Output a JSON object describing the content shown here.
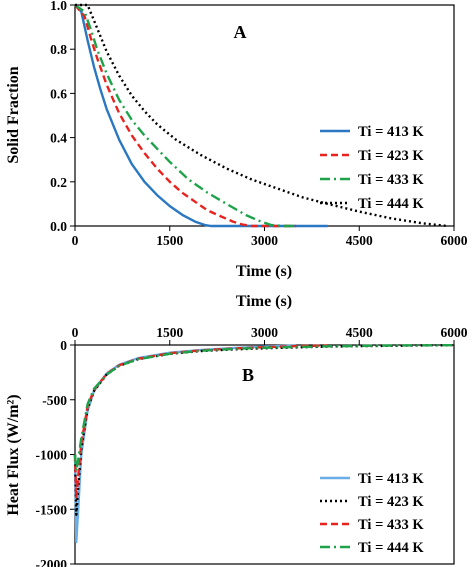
{
  "chart_data": [
    {
      "type": "line",
      "panel_label": "A",
      "xlabel": "Time (s)",
      "ylabel": "Solid Fraction",
      "xlim": [
        0,
        6000
      ],
      "ylim": [
        0,
        1.0
      ],
      "x_ticks": [
        "0",
        "1500",
        "3000",
        "4500",
        "6000"
      ],
      "y_ticks": [
        "0.0",
        "0.2",
        "0.4",
        "0.6",
        "0.8",
        "1.0"
      ],
      "grid": false,
      "legend_position": "lower-right",
      "series": [
        {
          "name": "Ti = 413 K",
          "color": "#2a78c2",
          "dash": "solid",
          "x": [
            0,
            100,
            200,
            300,
            400,
            500,
            700,
            900,
            1100,
            1300,
            1500,
            1700,
            1900,
            2050,
            2150,
            2400,
            3000,
            4000
          ],
          "y": [
            1.0,
            0.97,
            0.84,
            0.72,
            0.62,
            0.53,
            0.39,
            0.28,
            0.2,
            0.14,
            0.09,
            0.05,
            0.02,
            0.005,
            0.0,
            0.0,
            0.0,
            0.0
          ]
        },
        {
          "name": "Ti = 423 K",
          "color": "#e8231f",
          "dash": "dashed",
          "x": [
            0,
            150,
            250,
            350,
            500,
            700,
            900,
            1100,
            1300,
            1500,
            1700,
            1900,
            2100,
            2300,
            2500,
            2650,
            2800,
            3000,
            3500
          ],
          "y": [
            1.0,
            0.95,
            0.85,
            0.76,
            0.64,
            0.51,
            0.41,
            0.33,
            0.26,
            0.2,
            0.15,
            0.11,
            0.07,
            0.045,
            0.02,
            0.007,
            0.0,
            0.0,
            0.0
          ]
        },
        {
          "name": "Ti = 433 K",
          "color": "#1fa34a",
          "dash": "dashdot",
          "x": [
            0,
            150,
            250,
            350,
            500,
            700,
            900,
            1100,
            1300,
            1500,
            1800,
            2100,
            2400,
            2700,
            2900,
            3100,
            3300,
            3500
          ],
          "y": [
            1.0,
            0.97,
            0.89,
            0.8,
            0.69,
            0.57,
            0.48,
            0.41,
            0.35,
            0.29,
            0.21,
            0.15,
            0.1,
            0.05,
            0.025,
            0.005,
            0.0,
            0.0
          ]
        },
        {
          "name": "Ti = 444 K",
          "color": "#000000",
          "dash": "dotted",
          "x": [
            0,
            200,
            300,
            400,
            500,
            700,
            900,
            1100,
            1300,
            1600,
            2000,
            2400,
            2800,
            3200,
            3600,
            4000,
            4500,
            5000,
            5500,
            5900
          ],
          "y": [
            1.0,
            1.0,
            0.93,
            0.86,
            0.79,
            0.68,
            0.59,
            0.52,
            0.46,
            0.39,
            0.32,
            0.26,
            0.21,
            0.17,
            0.13,
            0.1,
            0.065,
            0.035,
            0.012,
            0.0
          ]
        }
      ]
    },
    {
      "type": "line",
      "panel_label": "B",
      "xlabel": "Time (s)",
      "ylabel": "Heat Flux (W/m²)",
      "xlim": [
        0,
        6000
      ],
      "ylim": [
        -2000,
        0
      ],
      "x_ticks": [
        "0",
        "1500",
        "3000",
        "4500",
        "6000"
      ],
      "y_ticks": [
        "0",
        "-500",
        "-1000",
        "-1500",
        "-2000"
      ],
      "grid": false,
      "legend_position": "lower-right",
      "series": [
        {
          "name": "Ti = 413 K",
          "color": "#6aaee6",
          "dash": "solid",
          "x": [
            0,
            20,
            50,
            100,
            200,
            300,
            500,
            700,
            1000,
            1500,
            2000,
            2500,
            3000,
            3500
          ],
          "y": [
            -1000,
            -1800,
            -1500,
            -1000,
            -600,
            -420,
            -260,
            -180,
            -120,
            -70,
            -45,
            -28,
            -15,
            -5
          ]
        },
        {
          "name": "Ti = 423 K",
          "color": "#000000",
          "dash": "dotted",
          "x": [
            0,
            20,
            50,
            100,
            200,
            300,
            500,
            700,
            1000,
            1500,
            2000,
            2500,
            3000,
            3500,
            4000,
            4500,
            5000,
            5500,
            6000
          ],
          "y": [
            -1000,
            -1550,
            -1300,
            -950,
            -580,
            -420,
            -270,
            -190,
            -130,
            -80,
            -55,
            -40,
            -30,
            -22,
            -15,
            -10,
            -7,
            -4,
            -2
          ]
        },
        {
          "name": "Ti = 433 K",
          "color": "#e8231f",
          "dash": "dashed",
          "x": [
            0,
            20,
            50,
            100,
            200,
            300,
            500,
            700,
            1000,
            1500,
            2000,
            2500,
            3000,
            3500,
            4000
          ],
          "y": [
            -1000,
            -1400,
            -1200,
            -900,
            -560,
            -410,
            -265,
            -185,
            -125,
            -75,
            -48,
            -32,
            -20,
            -10,
            -5
          ]
        },
        {
          "name": "Ti = 444 K",
          "color": "#1fa34a",
          "dash": "dashdot",
          "x": [
            0,
            20,
            50,
            100,
            200,
            300,
            500,
            700,
            1000,
            1500,
            2000,
            2500,
            3000,
            3500,
            4000,
            4500,
            5000,
            5500,
            6000
          ],
          "y": [
            -1000,
            -1150,
            -1050,
            -850,
            -540,
            -400,
            -270,
            -190,
            -130,
            -80,
            -52,
            -36,
            -26,
            -18,
            -12,
            -8,
            -5,
            -3,
            -2
          ]
        }
      ]
    }
  ]
}
